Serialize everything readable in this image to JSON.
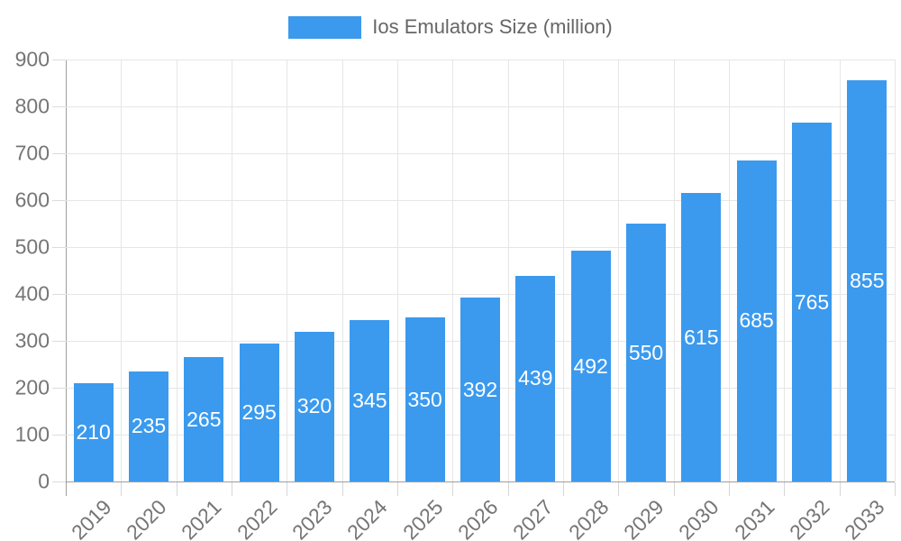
{
  "page": {
    "background": "#FFFFFF"
  },
  "legend": {
    "position": "top-center",
    "items": [
      {
        "label": "Ios Emulators Size (million)",
        "color": "#3B9AEE"
      }
    ]
  },
  "chart_data": {
    "type": "bar",
    "title": "Ios Emulators Size (million)",
    "categories": [
      "2019",
      "2020",
      "2021",
      "2022",
      "2023",
      "2024",
      "2025",
      "2026",
      "2027",
      "2028",
      "2029",
      "2030",
      "2031",
      "2032",
      "2033"
    ],
    "values": [
      210,
      235,
      265,
      295,
      320,
      345,
      350,
      392,
      439,
      492,
      550,
      615,
      685,
      765,
      855
    ],
    "xlabel": "",
    "ylabel": "",
    "ylim": [
      0,
      900
    ],
    "ytick_step": 100,
    "yticks": [
      0,
      100,
      200,
      300,
      400,
      500,
      600,
      700,
      800,
      900
    ],
    "grid": true,
    "x_tick_label_rotation_deg": -45,
    "bar_color": "#3B9AEE",
    "bar_value_label_color": "#FFFFFF",
    "axis_text_color": "#757575",
    "grid_color": "#E6E6E6",
    "axis_line_color": "#9E9E9E"
  }
}
